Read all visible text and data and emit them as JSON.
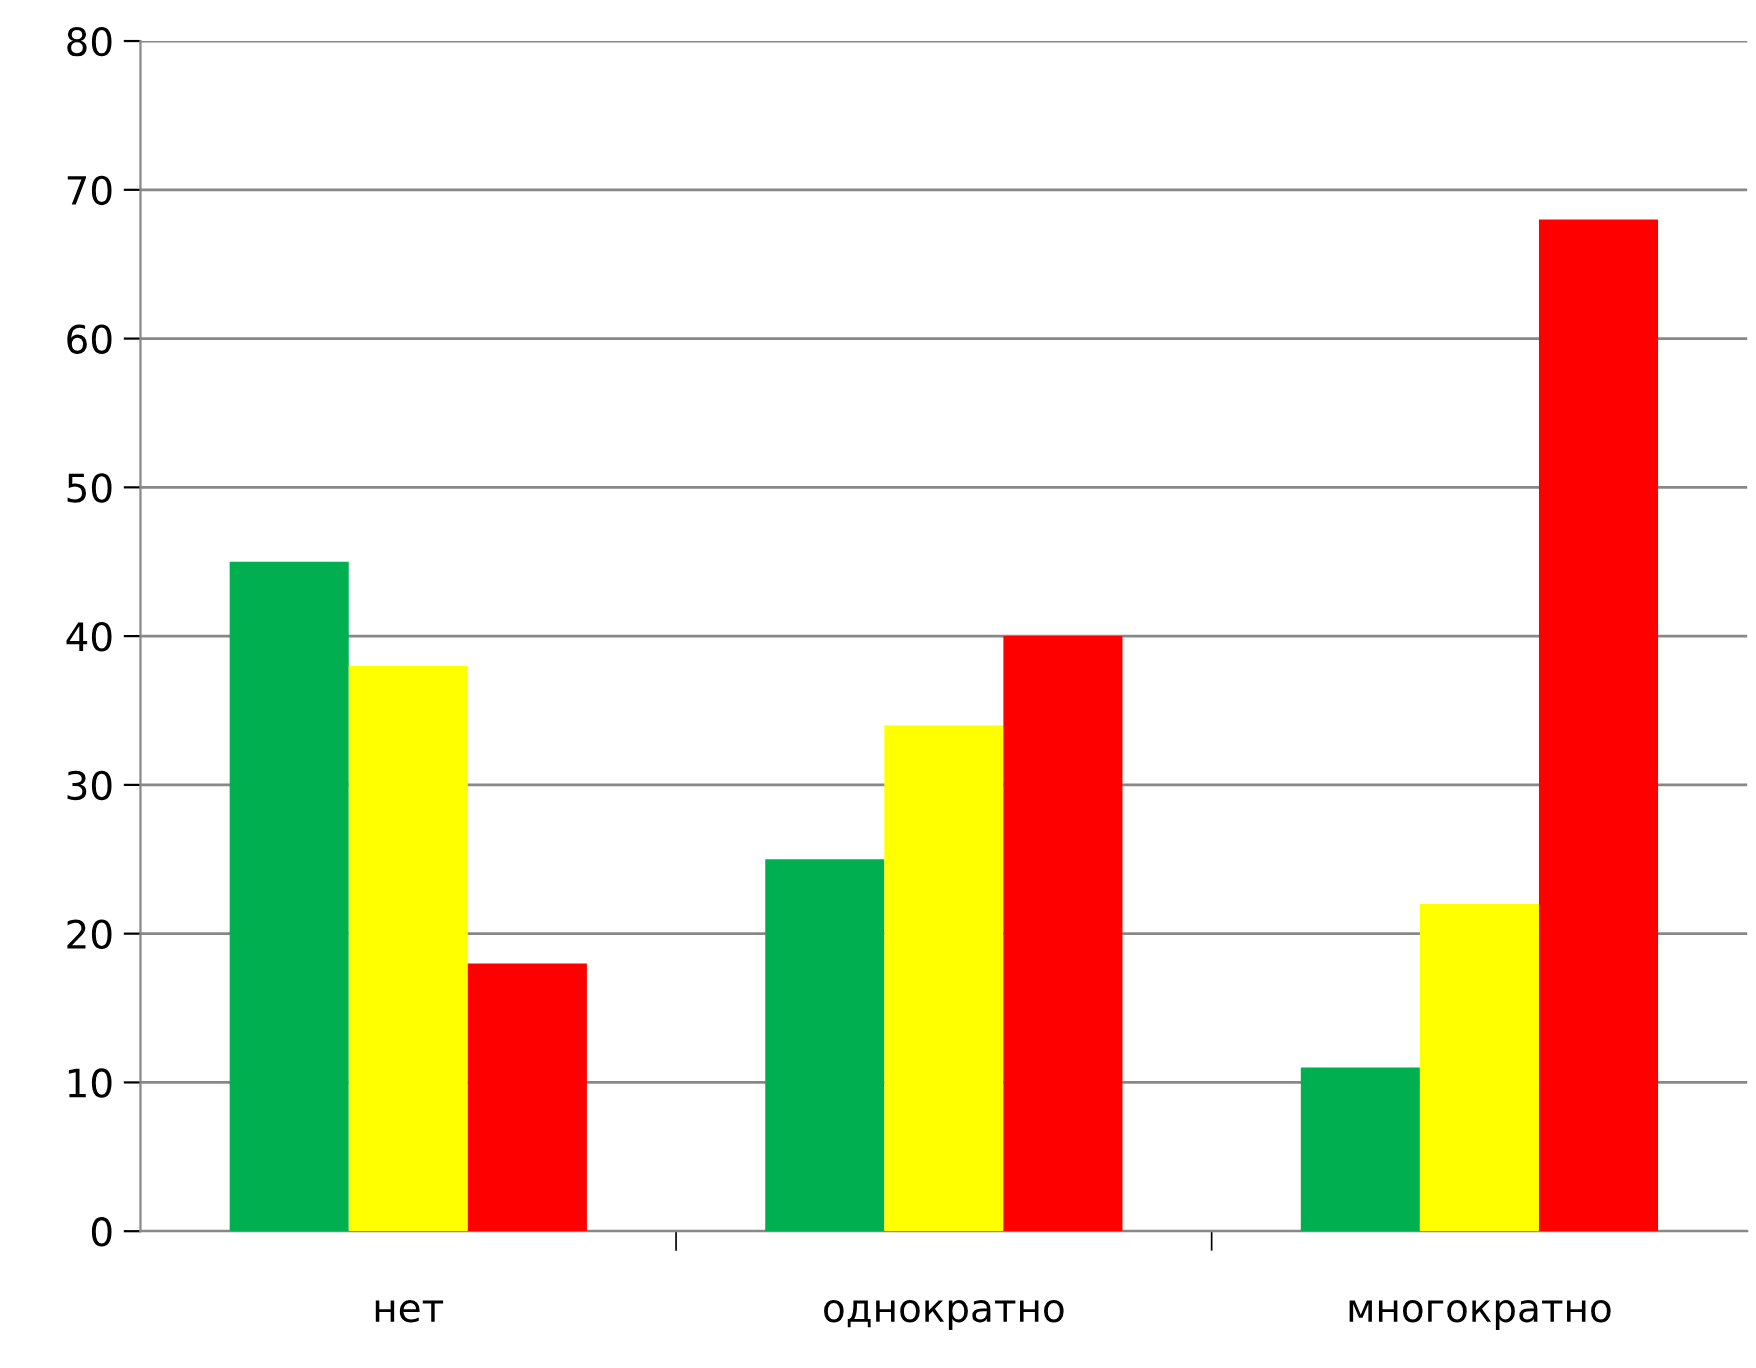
{
  "chart_data": {
    "type": "bar",
    "categories": [
      "нет",
      "однократно",
      "многократно"
    ],
    "series": [
      {
        "color": "#00b050",
        "values": [
          45,
          25,
          11
        ]
      },
      {
        "color": "#ffff00",
        "values": [
          38,
          34,
          22
        ]
      },
      {
        "color": "#ff0000",
        "values": [
          18,
          40,
          68
        ]
      }
    ],
    "ylim": [
      0,
      80
    ],
    "yticks": [
      0,
      10,
      20,
      30,
      40,
      50,
      60,
      70,
      80
    ],
    "grid": "y",
    "legend": false
  }
}
